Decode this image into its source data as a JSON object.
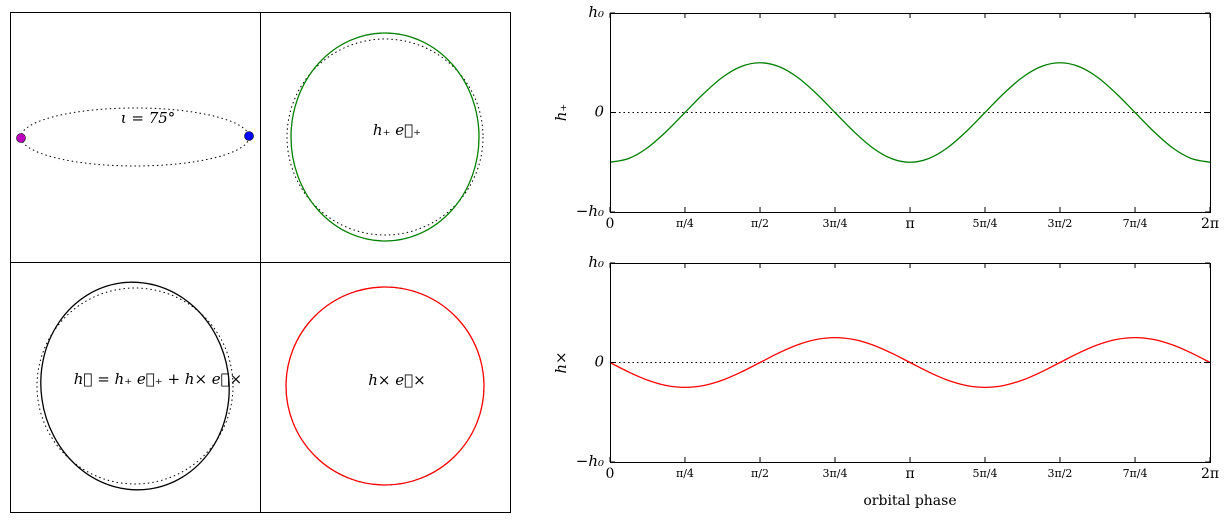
{
  "diagram": {
    "panels": [
      {
        "label": "ι = 75°"
      },
      {
        "label": "h₊ e⃡₊"
      },
      {
        "label": "h⃡ = h₊ e⃡₊ + h× e⃡×"
      },
      {
        "label": "h× e⃡×"
      }
    ]
  },
  "chart_data": [
    {
      "type": "line",
      "ylabel": "h₊",
      "x": [
        0,
        0.196,
        0.393,
        0.589,
        0.785,
        0.982,
        1.178,
        1.374,
        1.571,
        1.767,
        1.963,
        2.16,
        2.356,
        2.553,
        2.749,
        2.945,
        3.142,
        3.338,
        3.534,
        3.731,
        3.927,
        4.123,
        4.32,
        4.516,
        4.712,
        4.909,
        5.105,
        5.301,
        5.498,
        5.694,
        5.89,
        6.087,
        6.283
      ],
      "series": [
        {
          "name": "h₊",
          "color": "#008000",
          "values": [
            -0.5,
            -0.462,
            -0.354,
            -0.191,
            0,
            0.191,
            0.354,
            0.462,
            0.5,
            0.462,
            0.354,
            0.191,
            0,
            -0.191,
            -0.354,
            -0.462,
            -0.5,
            -0.462,
            -0.354,
            -0.191,
            0,
            0.191,
            0.354,
            0.462,
            0.5,
            0.462,
            0.354,
            0.191,
            0,
            -0.191,
            -0.354,
            -0.462,
            -0.5
          ]
        }
      ],
      "xlim": [
        0,
        6.283
      ],
      "ylim": [
        -1,
        1
      ],
      "xticks": [
        0,
        {
          "value": 0.785,
          "label": "π/4"
        },
        {
          "value": 1.571,
          "label": "π/2"
        },
        {
          "value": 2.356,
          "label": "3π/4"
        },
        {
          "value": 3.142,
          "label": "π"
        },
        {
          "value": 3.927,
          "label": "5π/4"
        },
        {
          "value": 4.712,
          "label": "3π/2"
        },
        {
          "value": 5.498,
          "label": "7π/4"
        },
        {
          "value": 6.283,
          "label": "2π"
        }
      ],
      "yticks": [
        {
          "value": -1,
          "label": "−h₀"
        },
        0,
        {
          "value": 1,
          "label": "h₀"
        }
      ]
    },
    {
      "type": "line",
      "ylabel": "h×",
      "xlabel": "orbital phase",
      "x": [
        0,
        0.196,
        0.393,
        0.589,
        0.785,
        0.982,
        1.178,
        1.374,
        1.571,
        1.767,
        1.963,
        2.16,
        2.356,
        2.553,
        2.749,
        2.945,
        3.142,
        3.338,
        3.534,
        3.731,
        3.927,
        4.123,
        4.32,
        4.516,
        4.712,
        4.909,
        5.105,
        5.301,
        5.498,
        5.694,
        5.89,
        6.087,
        6.283
      ],
      "series": [
        {
          "name": "h×",
          "color": "#ff0000",
          "values": [
            0,
            -0.096,
            -0.177,
            -0.231,
            -0.25,
            -0.231,
            -0.177,
            -0.096,
            0,
            0.096,
            0.177,
            0.231,
            0.25,
            0.231,
            0.177,
            0.096,
            0,
            -0.096,
            -0.177,
            -0.231,
            -0.25,
            -0.231,
            -0.177,
            -0.096,
            0,
            0.096,
            0.177,
            0.231,
            0.25,
            0.231,
            0.177,
            0.096,
            0
          ]
        }
      ],
      "xlim": [
        0,
        6.283
      ],
      "ylim": [
        -1,
        1
      ],
      "xticks": [
        0,
        {
          "value": 0.785,
          "label": "π/4"
        },
        {
          "value": 1.571,
          "label": "π/2"
        },
        {
          "value": 2.356,
          "label": "3π/4"
        },
        {
          "value": 3.142,
          "label": "π"
        },
        {
          "value": 3.927,
          "label": "5π/4"
        },
        {
          "value": 4.712,
          "label": "3π/2"
        },
        {
          "value": 5.498,
          "label": "7π/4"
        },
        {
          "value": 6.283,
          "label": "2π"
        }
      ],
      "yticks": [
        {
          "value": -1,
          "label": "−h₀"
        },
        0,
        {
          "value": 1,
          "label": "h₀"
        }
      ]
    }
  ]
}
